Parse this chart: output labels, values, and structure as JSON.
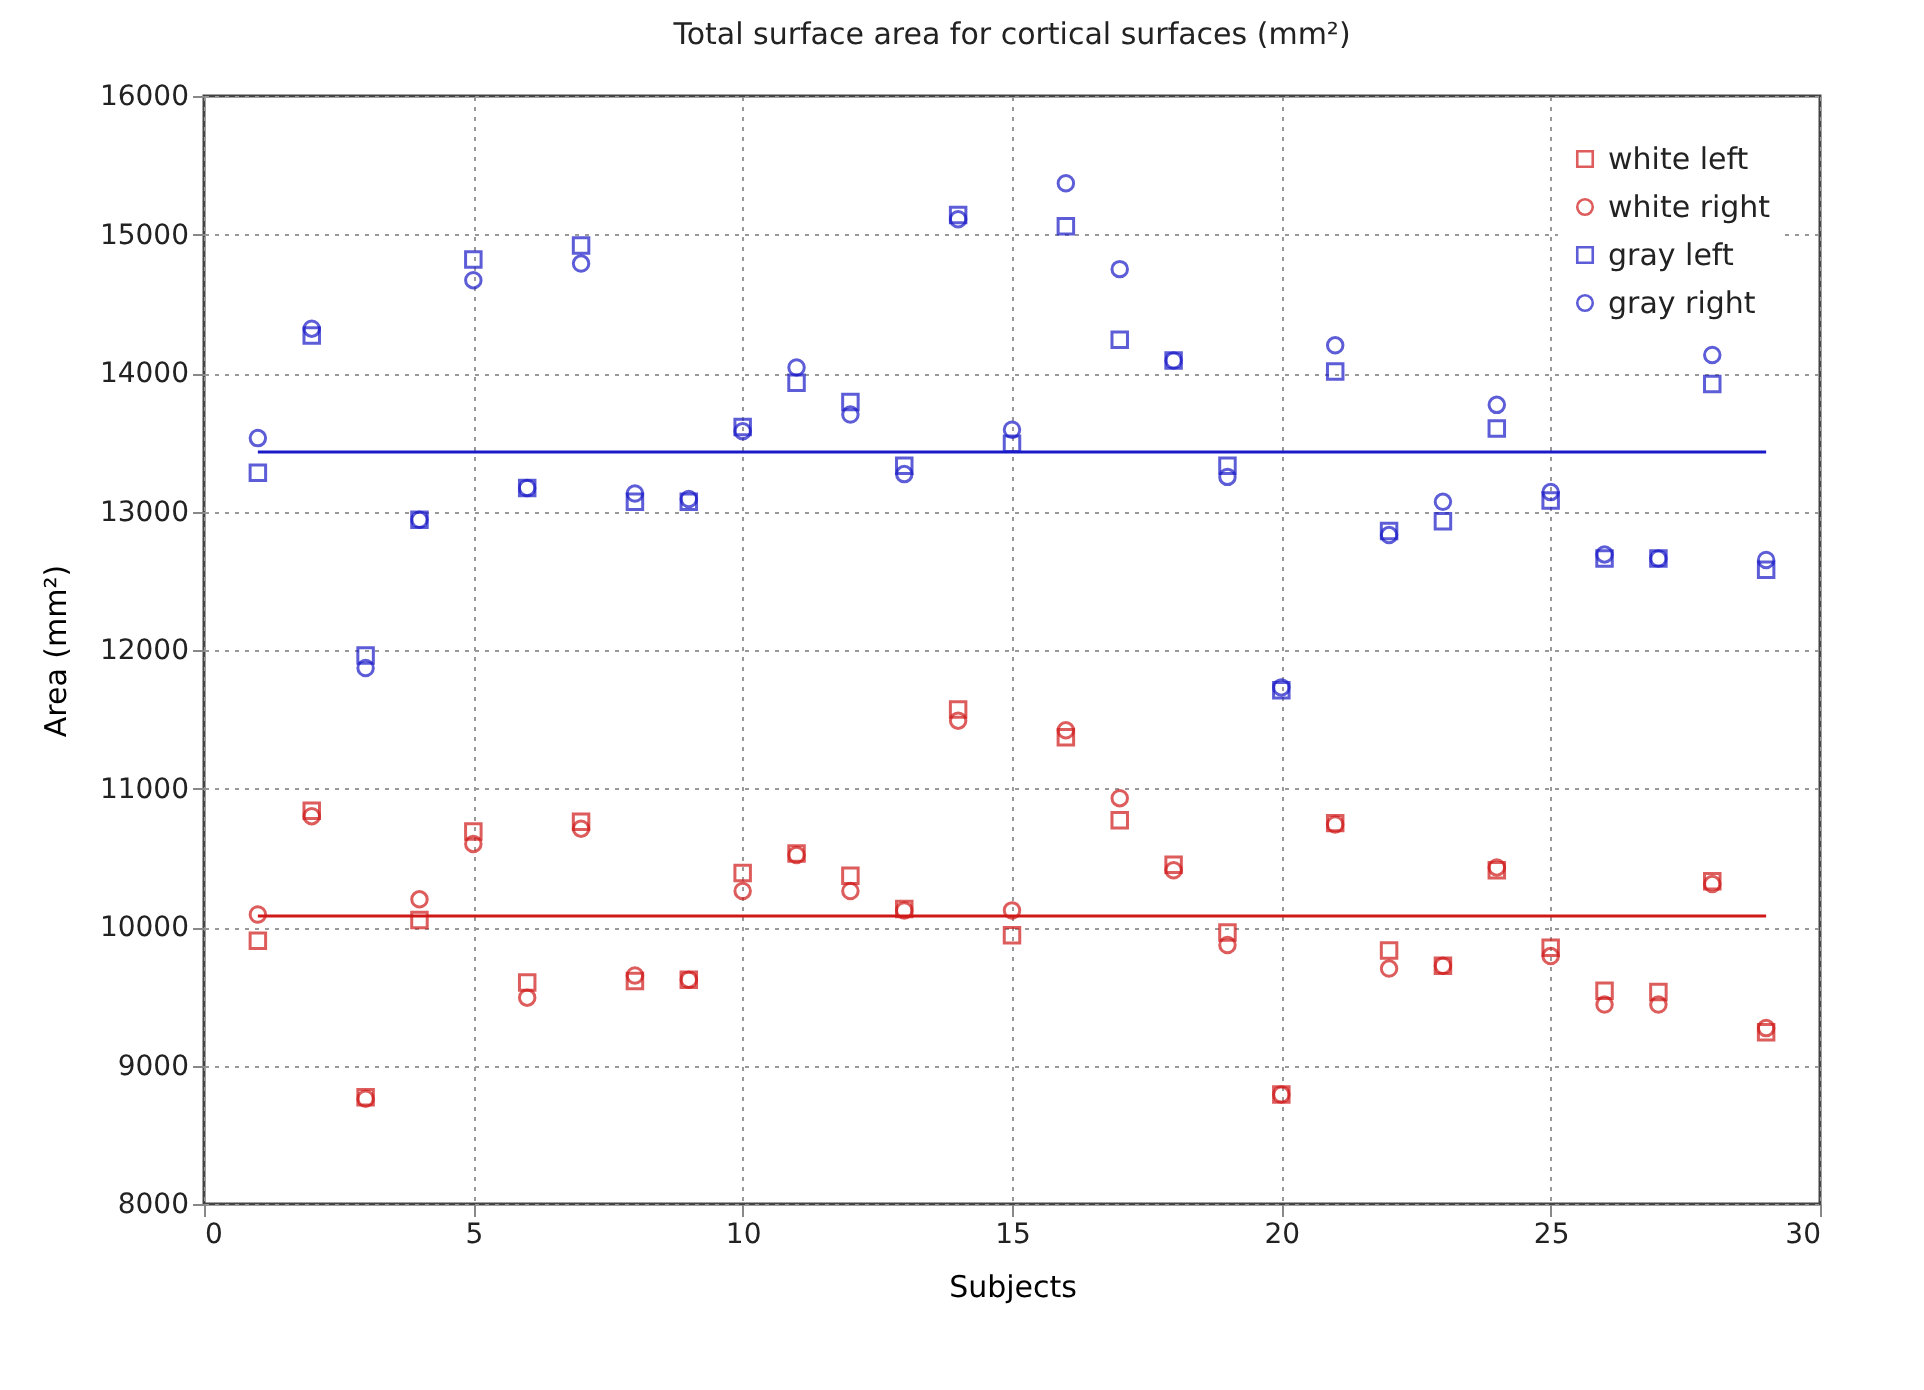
{
  "chart_data": {
    "type": "scatter",
    "title": "Total surface area for cortical surfaces (mm²)",
    "xlabel": "Subjects",
    "ylabel": "Area (mm²)",
    "x": [
      1,
      2,
      3,
      4,
      5,
      6,
      7,
      8,
      9,
      10,
      11,
      12,
      13,
      14,
      15,
      16,
      17,
      18,
      19,
      20,
      21,
      22,
      23,
      24,
      25,
      26,
      27,
      28,
      29
    ],
    "series": [
      {
        "name": "white left",
        "color": "#d01818",
        "marker": "square",
        "values": [
          9900,
          10840,
          8770,
          10050,
          10690,
          9600,
          10760,
          9610,
          9620,
          10390,
          10530,
          10370,
          10130,
          11570,
          9940,
          11370,
          10770,
          10450,
          9960,
          8790,
          10750,
          9830,
          9720,
          10410,
          9850,
          9540,
          9530,
          10330,
          9240
        ]
      },
      {
        "name": "white right",
        "color": "#d01818",
        "marker": "circle",
        "values": [
          10090,
          10800,
          8760,
          10200,
          10600,
          9490,
          10710,
          9650,
          9620,
          10260,
          10520,
          10260,
          10120,
          11490,
          10120,
          11420,
          10930,
          10410,
          9870,
          8790,
          10740,
          9700,
          9720,
          10430,
          9790,
          9440,
          9440,
          10310,
          9270
        ]
      },
      {
        "name": "gray left",
        "color": "#1a1ac8",
        "marker": "square",
        "values": [
          13280,
          14270,
          11960,
          12940,
          14820,
          13170,
          14920,
          13070,
          13070,
          13610,
          13930,
          13790,
          13330,
          15140,
          13490,
          15060,
          14240,
          14090,
          13330,
          11710,
          14010,
          12860,
          12930,
          13600,
          13080,
          12660,
          12660,
          13920,
          12580
        ]
      },
      {
        "name": "gray right",
        "color": "#1a1ac8",
        "marker": "circle",
        "values": [
          13530,
          14320,
          11870,
          12940,
          14670,
          13170,
          14790,
          13130,
          13090,
          13580,
          14040,
          13700,
          13270,
          15110,
          13590,
          15370,
          14750,
          14090,
          13250,
          11730,
          14200,
          12830,
          13070,
          13770,
          13140,
          12690,
          12660,
          14130,
          12650
        ]
      },
      {
        "type": "line",
        "color": "#d01818",
        "values": [
          10080,
          10080,
          10080,
          10080,
          10080,
          10080,
          10080,
          10080,
          10080,
          10080,
          10080,
          10080,
          10080,
          10080,
          10080,
          10080,
          10080,
          10080,
          10080,
          10080,
          10080,
          10080,
          10080,
          10080,
          10080,
          10080,
          10080,
          10080,
          10080
        ]
      },
      {
        "type": "line",
        "color": "#1a1ac8",
        "values": [
          13430,
          13430,
          13430,
          13430,
          13430,
          13430,
          13430,
          13430,
          13430,
          13430,
          13430,
          13430,
          13430,
          13430,
          13430,
          13430,
          13430,
          13430,
          13430,
          13430,
          13430,
          13430,
          13430,
          13430,
          13430,
          13430,
          13430,
          13430,
          13430
        ]
      }
    ],
    "xlim": [
      0,
      30
    ],
    "xticks": [
      0,
      5,
      10,
      15,
      20,
      25,
      30
    ],
    "ylim": [
      8000,
      16000
    ],
    "yticks": [
      8000,
      9000,
      10000,
      11000,
      12000,
      13000,
      14000,
      15000,
      16000
    ],
    "grid": true,
    "legend": "top right"
  }
}
